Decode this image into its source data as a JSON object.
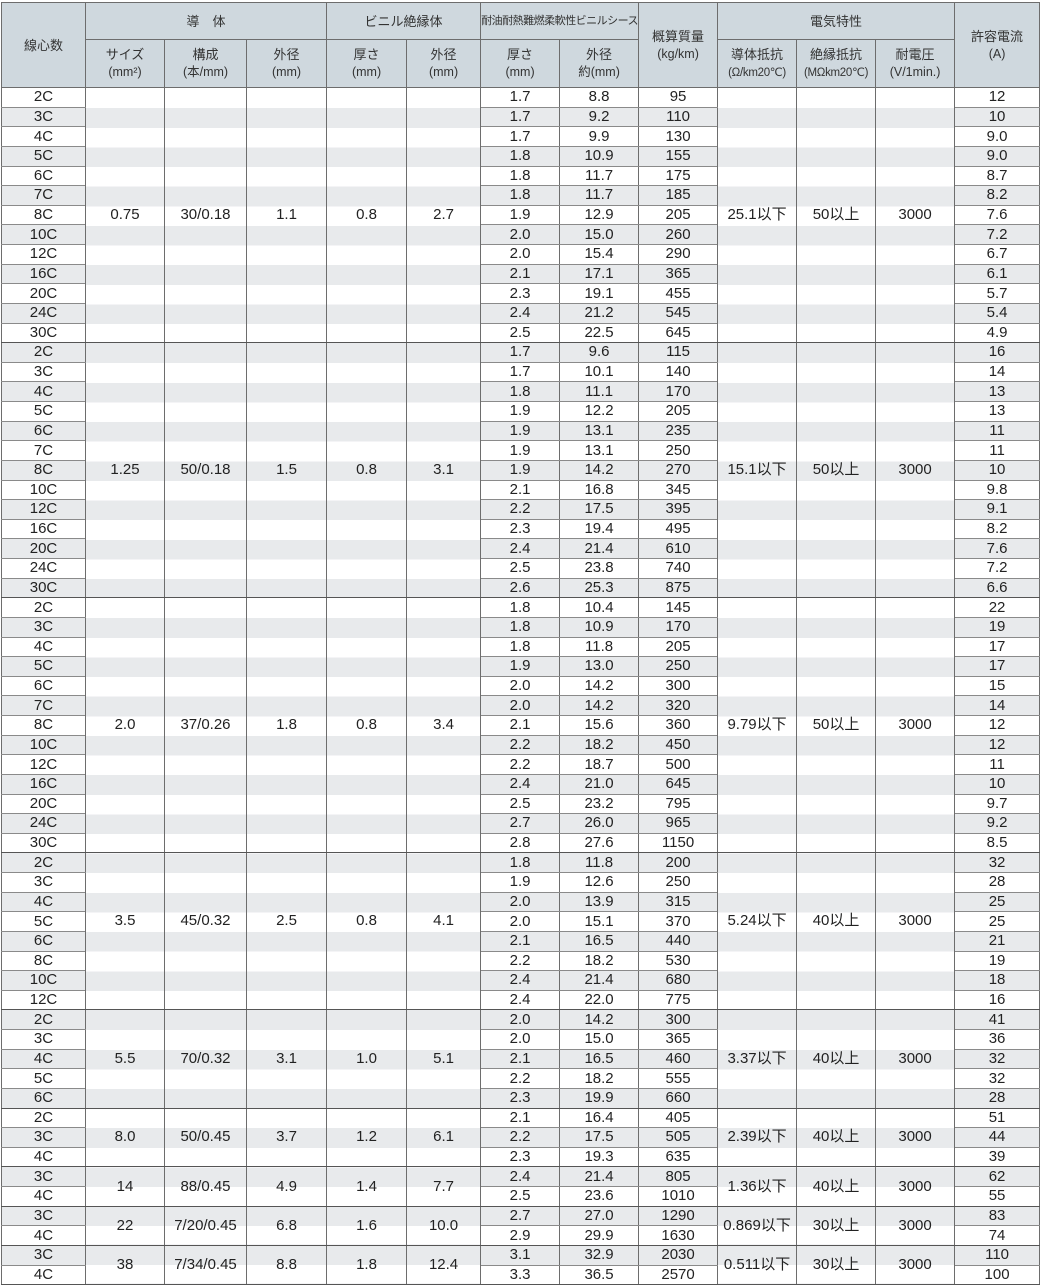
{
  "header": {
    "cores": "線心数",
    "conductor": "導　体",
    "conductor_size": "サイズ",
    "conductor_size_unit": "(mm²)",
    "conductor_strands": "構成",
    "conductor_strands_unit": "(本/mm)",
    "conductor_od": "外径",
    "conductor_od_unit": "(mm)",
    "insulation": "ビニル絶縁体",
    "insulation_thickness": "厚さ",
    "insulation_thickness_unit": "(mm)",
    "insulation_od": "外径",
    "insulation_od_unit": "(mm)",
    "sheath": "耐油耐熱難燃柔軟性ビニルシース",
    "sheath_thickness": "厚さ",
    "sheath_thickness_unit": "(mm)",
    "sheath_od": "外径",
    "sheath_od_unit": "約(mm)",
    "mass": "概算質量",
    "mass_unit": "(kg/km)",
    "electrical": "電気特性",
    "resistance": "導体抵抗",
    "resistance_unit": "(Ω/km20℃)",
    "insulation_resistance": "絶縁抵抗",
    "insulation_resistance_unit": "(MΩkm20℃)",
    "withstand_voltage": "耐電圧",
    "withstand_voltage_unit": "(V/1min.)",
    "ampacity": "許容電流",
    "ampacity_unit": "(A)"
  },
  "groups": [
    {
      "size": "0.75",
      "strands": "30/0.18",
      "cond_od": "1.1",
      "ins_thick": "0.8",
      "ins_od": "2.7",
      "resistance": "25.1以下",
      "insulation_resistance": "50以上",
      "voltage": "3000",
      "rows": [
        [
          "2C",
          "1.7",
          "8.8",
          "95",
          "12"
        ],
        [
          "3C",
          "1.7",
          "9.2",
          "110",
          "10"
        ],
        [
          "4C",
          "1.7",
          "9.9",
          "130",
          "9.0"
        ],
        [
          "5C",
          "1.8",
          "10.9",
          "155",
          "9.0"
        ],
        [
          "6C",
          "1.8",
          "11.7",
          "175",
          "8.7"
        ],
        [
          "7C",
          "1.8",
          "11.7",
          "185",
          "8.2"
        ],
        [
          "8C",
          "1.9",
          "12.9",
          "205",
          "7.6"
        ],
        [
          "10C",
          "2.0",
          "15.0",
          "260",
          "7.2"
        ],
        [
          "12C",
          "2.0",
          "15.4",
          "290",
          "6.7"
        ],
        [
          "16C",
          "2.1",
          "17.1",
          "365",
          "6.1"
        ],
        [
          "20C",
          "2.3",
          "19.1",
          "455",
          "5.7"
        ],
        [
          "24C",
          "2.4",
          "21.2",
          "545",
          "5.4"
        ],
        [
          "30C",
          "2.5",
          "22.5",
          "645",
          "4.9"
        ]
      ]
    },
    {
      "size": "1.25",
      "strands": "50/0.18",
      "cond_od": "1.5",
      "ins_thick": "0.8",
      "ins_od": "3.1",
      "resistance": "15.1以下",
      "insulation_resistance": "50以上",
      "voltage": "3000",
      "rows": [
        [
          "2C",
          "1.7",
          "9.6",
          "115",
          "16"
        ],
        [
          "3C",
          "1.7",
          "10.1",
          "140",
          "14"
        ],
        [
          "4C",
          "1.8",
          "11.1",
          "170",
          "13"
        ],
        [
          "5C",
          "1.9",
          "12.2",
          "205",
          "13"
        ],
        [
          "6C",
          "1.9",
          "13.1",
          "235",
          "11"
        ],
        [
          "7C",
          "1.9",
          "13.1",
          "250",
          "11"
        ],
        [
          "8C",
          "1.9",
          "14.2",
          "270",
          "10"
        ],
        [
          "10C",
          "2.1",
          "16.8",
          "345",
          "9.8"
        ],
        [
          "12C",
          "2.2",
          "17.5",
          "395",
          "9.1"
        ],
        [
          "16C",
          "2.3",
          "19.4",
          "495",
          "8.2"
        ],
        [
          "20C",
          "2.4",
          "21.4",
          "610",
          "7.6"
        ],
        [
          "24C",
          "2.5",
          "23.8",
          "740",
          "7.2"
        ],
        [
          "30C",
          "2.6",
          "25.3",
          "875",
          "6.6"
        ]
      ]
    },
    {
      "size": "2.0",
      "strands": "37/0.26",
      "cond_od": "1.8",
      "ins_thick": "0.8",
      "ins_od": "3.4",
      "resistance": "9.79以下",
      "insulation_resistance": "50以上",
      "voltage": "3000",
      "rows": [
        [
          "2C",
          "1.8",
          "10.4",
          "145",
          "22"
        ],
        [
          "3C",
          "1.8",
          "10.9",
          "170",
          "19"
        ],
        [
          "4C",
          "1.8",
          "11.8",
          "205",
          "17"
        ],
        [
          "5C",
          "1.9",
          "13.0",
          "250",
          "17"
        ],
        [
          "6C",
          "2.0",
          "14.2",
          "300",
          "15"
        ],
        [
          "7C",
          "2.0",
          "14.2",
          "320",
          "14"
        ],
        [
          "8C",
          "2.1",
          "15.6",
          "360",
          "12"
        ],
        [
          "10C",
          "2.2",
          "18.2",
          "450",
          "12"
        ],
        [
          "12C",
          "2.2",
          "18.7",
          "500",
          "11"
        ],
        [
          "16C",
          "2.4",
          "21.0",
          "645",
          "10"
        ],
        [
          "20C",
          "2.5",
          "23.2",
          "795",
          "9.7"
        ],
        [
          "24C",
          "2.7",
          "26.0",
          "965",
          "9.2"
        ],
        [
          "30C",
          "2.8",
          "27.6",
          "1150",
          "8.5"
        ]
      ]
    },
    {
      "size": "3.5",
      "strands": "45/0.32",
      "cond_od": "2.5",
      "ins_thick": "0.8",
      "ins_od": "4.1",
      "resistance": "5.24以下",
      "insulation_resistance": "40以上",
      "voltage": "3000",
      "rows": [
        [
          "2C",
          "1.8",
          "11.8",
          "200",
          "32"
        ],
        [
          "3C",
          "1.9",
          "12.6",
          "250",
          "28"
        ],
        [
          "4C",
          "2.0",
          "13.9",
          "315",
          "25"
        ],
        [
          "5C",
          "2.0",
          "15.1",
          "370",
          "25"
        ],
        [
          "6C",
          "2.1",
          "16.5",
          "440",
          "21"
        ],
        [
          "8C",
          "2.2",
          "18.2",
          "530",
          "19"
        ],
        [
          "10C",
          "2.4",
          "21.4",
          "680",
          "18"
        ],
        [
          "12C",
          "2.4",
          "22.0",
          "775",
          "16"
        ]
      ]
    },
    {
      "size": "5.5",
      "strands": "70/0.32",
      "cond_od": "3.1",
      "ins_thick": "1.0",
      "ins_od": "5.1",
      "resistance": "3.37以下",
      "insulation_resistance": "40以上",
      "voltage": "3000",
      "rows": [
        [
          "2C",
          "2.0",
          "14.2",
          "300",
          "41"
        ],
        [
          "3C",
          "2.0",
          "15.0",
          "365",
          "36"
        ],
        [
          "4C",
          "2.1",
          "16.5",
          "460",
          "32"
        ],
        [
          "5C",
          "2.2",
          "18.2",
          "555",
          "32"
        ],
        [
          "6C",
          "2.3",
          "19.9",
          "660",
          "28"
        ]
      ]
    },
    {
      "size": "8.0",
      "strands": "50/0.45",
      "cond_od": "3.7",
      "ins_thick": "1.2",
      "ins_od": "6.1",
      "resistance": "2.39以下",
      "insulation_resistance": "40以上",
      "voltage": "3000",
      "rows": [
        [
          "2C",
          "2.1",
          "16.4",
          "405",
          "51"
        ],
        [
          "3C",
          "2.2",
          "17.5",
          "505",
          "44"
        ],
        [
          "4C",
          "2.3",
          "19.3",
          "635",
          "39"
        ]
      ]
    },
    {
      "size": "14",
      "strands": "88/0.45",
      "cond_od": "4.9",
      "ins_thick": "1.4",
      "ins_od": "7.7",
      "resistance": "1.36以下",
      "insulation_resistance": "40以上",
      "voltage": "3000",
      "rows": [
        [
          "3C",
          "2.4",
          "21.4",
          "805",
          "62"
        ],
        [
          "4C",
          "2.5",
          "23.6",
          "1010",
          "55"
        ]
      ]
    },
    {
      "size": "22",
      "strands": "7/20/0.45",
      "cond_od": "6.8",
      "ins_thick": "1.6",
      "ins_od": "10.0",
      "resistance": "0.869以下",
      "insulation_resistance": "30以上",
      "voltage": "3000",
      "rows": [
        [
          "3C",
          "2.7",
          "27.0",
          "1290",
          "83"
        ],
        [
          "4C",
          "2.9",
          "29.9",
          "1630",
          "74"
        ]
      ]
    },
    {
      "size": "38",
      "strands": "7/34/0.45",
      "cond_od": "8.8",
      "ins_thick": "1.8",
      "ins_od": "12.4",
      "resistance": "0.511以下",
      "insulation_resistance": "30以上",
      "voltage": "3000",
      "rows": [
        [
          "3C",
          "3.1",
          "32.9",
          "2030",
          "110"
        ],
        [
          "4C",
          "3.3",
          "36.5",
          "2570",
          "100"
        ]
      ]
    }
  ],
  "colors": {
    "header_bg": "#cfd8de",
    "stripe": "#e8eaec",
    "border": "#6d6d6d"
  }
}
